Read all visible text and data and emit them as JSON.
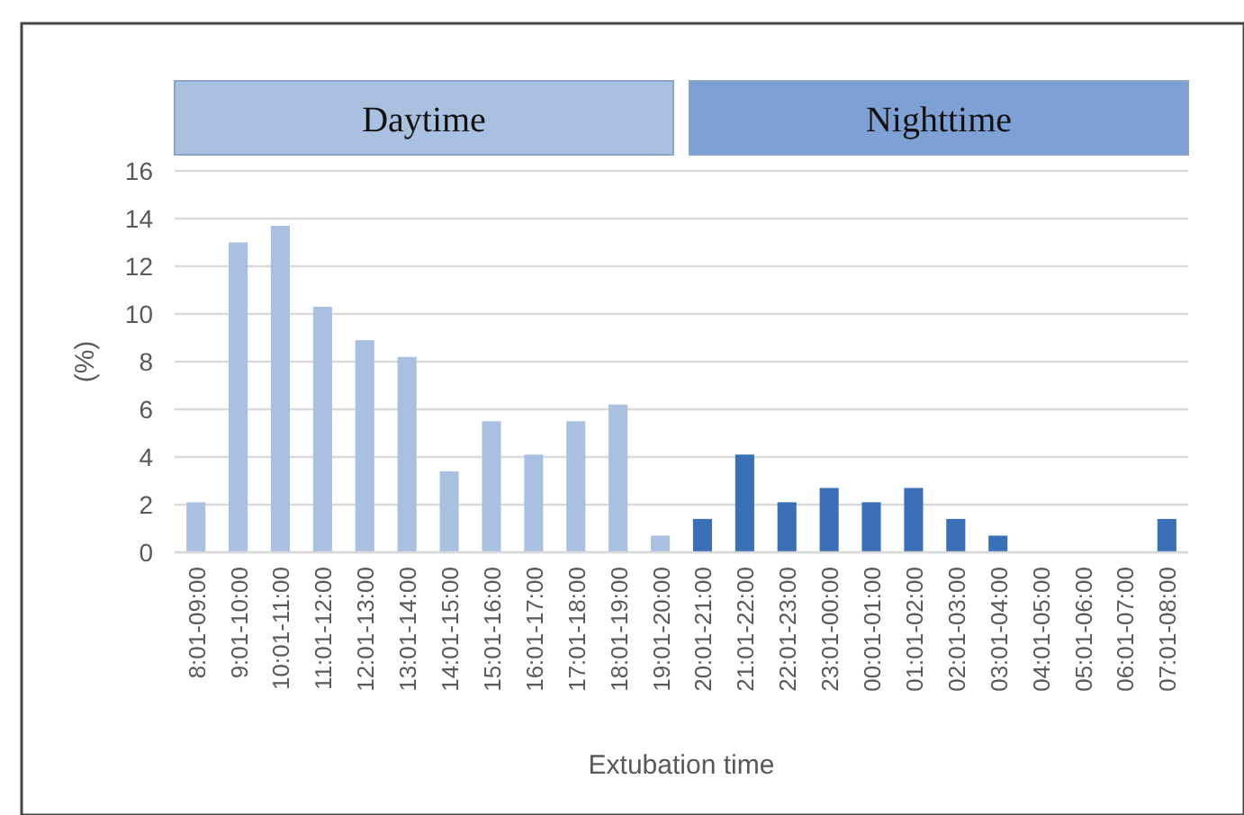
{
  "chart_data": {
    "type": "bar",
    "xlabel": "Extubation time",
    "ylabel": "(%)",
    "categories": [
      "8:01-09:00",
      "9:01-10:00",
      "10:01-11:00",
      "11:01-12:00",
      "12:01-13:00",
      "13:01-14:00",
      "14:01-15:00",
      "15:01-16:00",
      "16:01-17:00",
      "17:01-18:00",
      "18:01-19:00",
      "19:01-20:00",
      "20:01-21:00",
      "21:01-22:00",
      "22:01-23:00",
      "23:01-00:00",
      "00:01-01:00",
      "01:01-02:00",
      "02:01-03:00",
      "03:01-04:00",
      "04:01-05:00",
      "05:01-06:00",
      "06:01-07:00",
      "07:01-08:00"
    ],
    "values": [
      2.1,
      13.0,
      13.7,
      10.3,
      8.9,
      8.2,
      3.4,
      5.5,
      4.1,
      5.5,
      6.2,
      0.7,
      1.4,
      4.1,
      2.1,
      2.7,
      2.1,
      2.7,
      1.4,
      0.7,
      0,
      0,
      0,
      1.4
    ],
    "colors": [
      "#a9c0e0",
      "#a9c0e0",
      "#a9c0e0",
      "#a9c0e0",
      "#a9c0e0",
      "#a9c0e0",
      "#a9c0e0",
      "#a9c0e0",
      "#a9c0e0",
      "#a9c0e0",
      "#a9c0e0",
      "#a9c0e0",
      "#3b6fb6",
      "#3b6fb6",
      "#3b6fb6",
      "#3b6fb6",
      "#3b6fb6",
      "#3b6fb6",
      "#3b6fb6",
      "#3b6fb6",
      "#3b6fb6",
      "#3b6fb6",
      "#3b6fb6",
      "#3b6fb6"
    ],
    "ylim": [
      0,
      16
    ],
    "yticks": [
      0,
      2,
      4,
      6,
      8,
      10,
      12,
      14,
      16
    ],
    "grid": "y",
    "annotations": [
      "Daytime",
      "Nighttime"
    ]
  }
}
